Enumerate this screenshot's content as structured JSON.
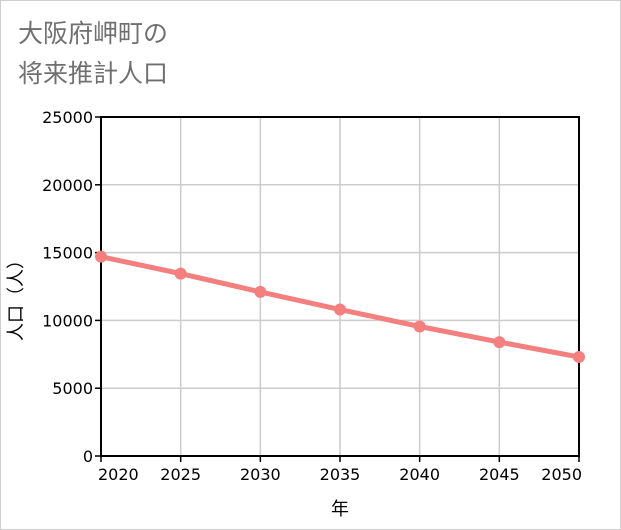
{
  "chart_data": {
    "type": "line",
    "title_lines": [
      "大阪府岬町の",
      "将来推計人口"
    ],
    "xlabel": "年",
    "ylabel": "人口（人）",
    "x": [
      2020,
      2025,
      2030,
      2035,
      2040,
      2045,
      2050
    ],
    "xticks": [
      2020,
      2025,
      2030,
      2035,
      2040,
      2045,
      2050
    ],
    "yticks": [
      0,
      5000,
      10000,
      15000,
      20000,
      25000
    ],
    "xlim": [
      2020,
      2050
    ],
    "ylim": [
      0,
      25000
    ],
    "grid": true,
    "series": [
      {
        "name": "人口",
        "color": "#f47f7f",
        "values": [
          14700,
          13450,
          12100,
          10800,
          9550,
          8400,
          7300
        ]
      }
    ]
  }
}
